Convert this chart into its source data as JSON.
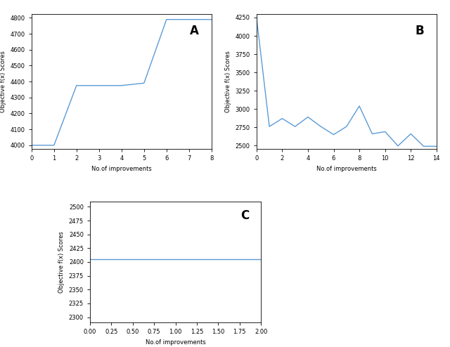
{
  "panel_A": {
    "x": [
      0,
      1,
      2,
      3,
      4,
      5,
      6,
      7,
      8
    ],
    "y": [
      4000,
      4000,
      4375,
      4375,
      4375,
      4390,
      4790,
      4790,
      4790
    ],
    "xlabel": "No.of improvements",
    "ylabel": "Objective f(x) Scores",
    "label": "A",
    "color": "#5b9bd5",
    "xlim": [
      0,
      8
    ],
    "ylim": [
      3975,
      4825
    ]
  },
  "panel_B": {
    "x": [
      0,
      1,
      2,
      3,
      4,
      5,
      6,
      7,
      8,
      9,
      10,
      11,
      12,
      13,
      14
    ],
    "y": [
      4250,
      2760,
      2870,
      2760,
      2890,
      2760,
      2650,
      2760,
      3040,
      2660,
      2690,
      2495,
      2660,
      2490,
      2490
    ],
    "xlabel": "No.of improvements",
    "ylabel": "Objective f(x) Scores",
    "label": "B",
    "color": "#5b9bd5",
    "xlim": [
      0,
      14
    ],
    "ylim": [
      2450,
      4300
    ]
  },
  "panel_C": {
    "x": [
      0,
      2
    ],
    "y": [
      2405,
      2405
    ],
    "xlabel": "No.of improvements",
    "ylabel": "Objective f(x) Scores",
    "label": "C",
    "color": "#5b9bd5",
    "xlim": [
      0,
      2
    ],
    "ylim": [
      2290,
      2510
    ]
  },
  "figure_bg": "#ffffff",
  "axes_bg": "#ffffff",
  "label_fontsize": 12,
  "axis_label_fontsize": 6,
  "tick_fontsize": 6,
  "linewidth": 1.0
}
